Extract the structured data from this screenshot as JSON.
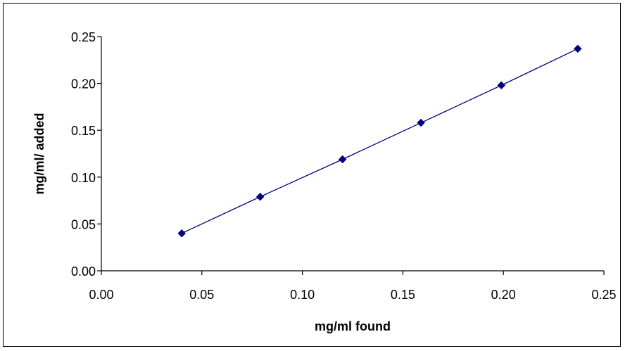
{
  "chart_data": {
    "type": "scatter",
    "title": "",
    "xlabel": "mg/ml found",
    "ylabel": "mg/ml/ added",
    "xlim": [
      0,
      0.25
    ],
    "ylim": [
      0,
      0.25
    ],
    "x_ticks": [
      "0.00",
      "0.05",
      "0.10",
      "0.15",
      "0.20",
      "0.25"
    ],
    "y_ticks": [
      "0.00",
      "0.05",
      "0.10",
      "0.15",
      "0.20",
      "0.25"
    ],
    "grid": false,
    "legend": "none",
    "series": [
      {
        "marker": "diamond",
        "color": "#000080",
        "line": true,
        "points": [
          {
            "x": 0.04,
            "y": 0.04
          },
          {
            "x": 0.079,
            "y": 0.079
          },
          {
            "x": 0.12,
            "y": 0.119
          },
          {
            "x": 0.159,
            "y": 0.158
          },
          {
            "x": 0.199,
            "y": 0.198
          },
          {
            "x": 0.237,
            "y": 0.237
          }
        ]
      }
    ]
  }
}
